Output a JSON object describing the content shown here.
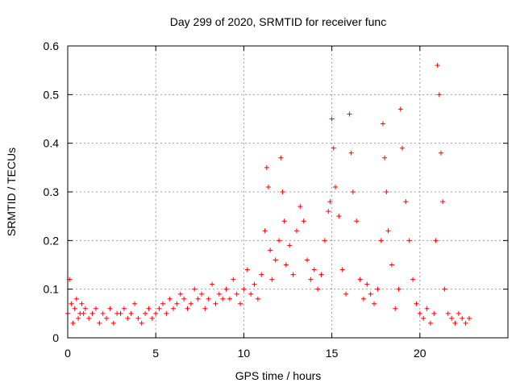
{
  "chart_data": {
    "type": "scatter",
    "title": "Day 299 of 2020, SRMTID for receiver func",
    "xlabel": "GPS time / hours",
    "ylabel": "SRMTID / TECUs",
    "xlim": [
      0,
      25
    ],
    "ylim": [
      0,
      0.6
    ],
    "xticks": [
      0,
      5,
      10,
      15,
      20
    ],
    "xtick_labels": [
      "0",
      "5",
      "10",
      "15",
      "20"
    ],
    "yticks": [
      0,
      0.1,
      0.2,
      0.3,
      0.4,
      0.5,
      0.6
    ],
    "ytick_labels": [
      "0",
      "0.1",
      "0.2",
      "0.3",
      "0.4",
      "0.5",
      "0.6"
    ],
    "grid": true,
    "marker": "+",
    "color": "#ff0000",
    "series": [
      {
        "name": "SRMTID",
        "x": [
          0.0,
          0.1,
          0.2,
          0.3,
          0.4,
          0.5,
          0.6,
          0.7,
          0.8,
          0.9,
          1.0,
          1.2,
          1.4,
          1.6,
          1.8,
          2.0,
          2.2,
          2.4,
          2.6,
          2.8,
          3.0,
          3.2,
          3.4,
          3.6,
          3.8,
          4.0,
          4.2,
          4.4,
          4.6,
          4.8,
          5.0,
          5.2,
          5.4,
          5.6,
          5.8,
          6.0,
          6.2,
          6.4,
          6.6,
          6.8,
          7.0,
          7.2,
          7.4,
          7.6,
          7.8,
          8.0,
          8.2,
          8.4,
          8.6,
          8.8,
          9.0,
          9.2,
          9.4,
          9.6,
          9.8,
          10.0,
          10.2,
          10.4,
          10.6,
          10.8,
          11.0,
          11.2,
          11.3,
          11.4,
          11.5,
          11.6,
          11.8,
          12.0,
          12.1,
          12.2,
          12.3,
          12.4,
          12.6,
          12.8,
          13.0,
          13.2,
          13.4,
          13.6,
          13.8,
          14.0,
          14.2,
          14.4,
          14.6,
          14.8,
          14.9,
          15.0,
          15.1,
          15.2,
          15.4,
          15.6,
          15.8,
          16.0,
          16.1,
          16.2,
          16.4,
          16.6,
          16.8,
          17.0,
          17.2,
          17.4,
          17.6,
          17.8,
          17.9,
          18.0,
          18.1,
          18.2,
          18.4,
          18.6,
          18.8,
          18.9,
          19.0,
          19.2,
          19.4,
          19.6,
          19.8,
          20.0,
          20.2,
          20.4,
          20.6,
          20.8,
          20.9,
          21.0,
          21.1,
          21.2,
          21.3,
          21.4,
          21.6,
          21.8,
          22.0,
          22.2,
          22.4,
          22.6,
          22.8
        ],
        "y": [
          0.05,
          0.12,
          0.07,
          0.03,
          0.06,
          0.08,
          0.04,
          0.05,
          0.07,
          0.05,
          0.06,
          0.04,
          0.05,
          0.06,
          0.03,
          0.05,
          0.04,
          0.06,
          0.03,
          0.05,
          0.05,
          0.06,
          0.04,
          0.05,
          0.07,
          0.04,
          0.03,
          0.05,
          0.06,
          0.04,
          0.05,
          0.06,
          0.07,
          0.05,
          0.08,
          0.06,
          0.07,
          0.09,
          0.08,
          0.06,
          0.07,
          0.1,
          0.08,
          0.09,
          0.06,
          0.08,
          0.11,
          0.07,
          0.09,
          0.08,
          0.1,
          0.08,
          0.12,
          0.09,
          0.07,
          0.1,
          0.14,
          0.09,
          0.11,
          0.08,
          0.13,
          0.22,
          0.35,
          0.31,
          0.18,
          0.12,
          0.16,
          0.2,
          0.37,
          0.3,
          0.24,
          0.15,
          0.19,
          0.13,
          0.22,
          0.27,
          0.24,
          0.16,
          0.12,
          0.14,
          0.1,
          0.13,
          0.2,
          0.26,
          0.28,
          0.45,
          0.39,
          0.31,
          0.25,
          0.14,
          0.09,
          0.46,
          0.38,
          0.3,
          0.24,
          0.12,
          0.08,
          0.11,
          0.09,
          0.07,
          0.1,
          0.2,
          0.44,
          0.37,
          0.3,
          0.22,
          0.15,
          0.06,
          0.1,
          0.47,
          0.39,
          0.28,
          0.2,
          0.12,
          0.07,
          0.05,
          0.04,
          0.06,
          0.03,
          0.05,
          0.2,
          0.56,
          0.5,
          0.38,
          0.28,
          0.1,
          0.05,
          0.04,
          0.03,
          0.05,
          0.04,
          0.03,
          0.04
        ]
      }
    ]
  }
}
